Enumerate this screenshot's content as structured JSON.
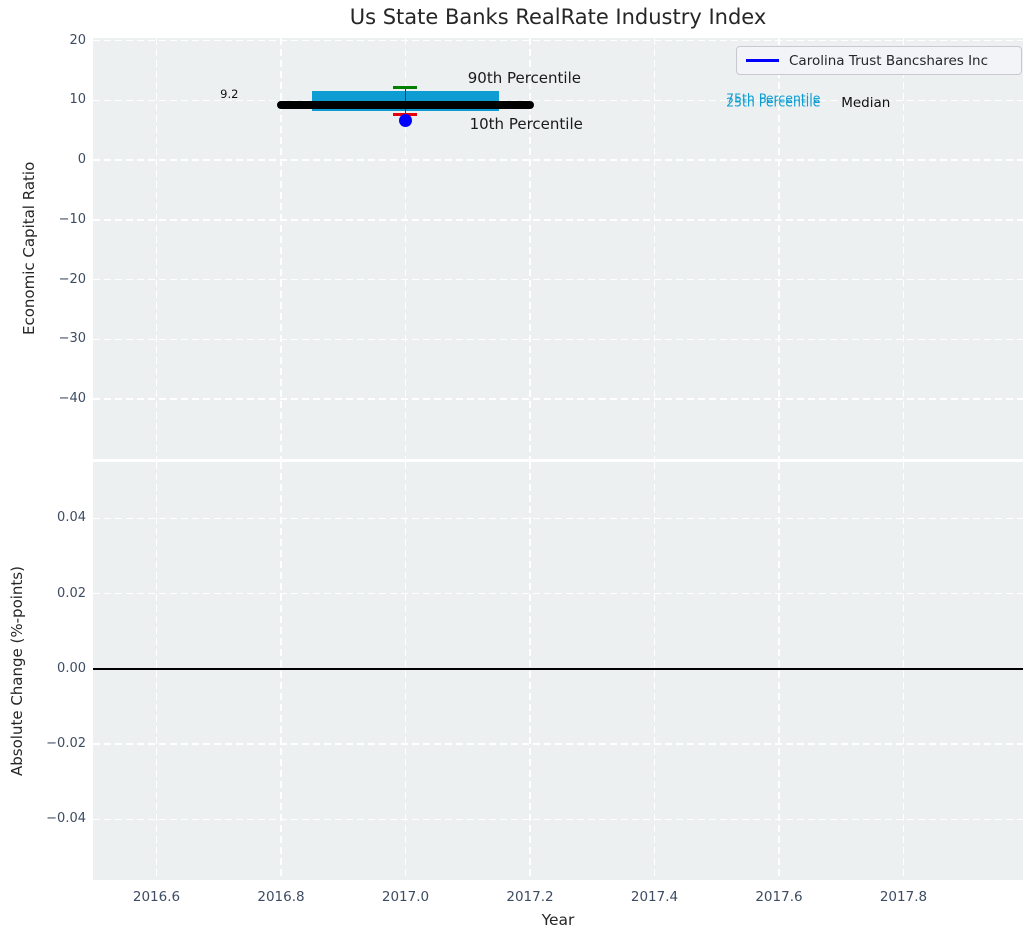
{
  "chart_data": {
    "type": "box",
    "title": "Us State Banks RealRate Industry Index",
    "xlabel": "Year",
    "xlim": [
      2016.498,
      2017.992
    ],
    "xticks": [
      {
        "value": 2016.6,
        "label": "2016.6"
      },
      {
        "value": 2016.8,
        "label": "2016.8"
      },
      {
        "value": 2017.0,
        "label": "2017.0"
      },
      {
        "value": 2017.2,
        "label": "2017.2"
      },
      {
        "value": 2017.4,
        "label": "2017.4"
      },
      {
        "value": 2017.6,
        "label": "2017.6"
      },
      {
        "value": 2017.8,
        "label": "2017.8"
      }
    ],
    "grid": true,
    "legend": {
      "position": "upper right",
      "entries": [
        {
          "label": "Carolina Trust Bancshares Inc",
          "color": "#0000ff"
        }
      ]
    },
    "panels": [
      {
        "ylabel": "Economic Capital Ratio",
        "ylim": [
          -50,
          20.45
        ],
        "yticks": [
          {
            "value": 20,
            "label": "20"
          },
          {
            "value": 10,
            "label": "10"
          },
          {
            "value": 0,
            "label": "0"
          },
          {
            "value": -10,
            "label": "−10"
          },
          {
            "value": -20,
            "label": "−20"
          },
          {
            "value": -30,
            "label": "−30"
          },
          {
            "value": -40,
            "label": "−40"
          }
        ],
        "industry": {
          "year": 2017.0,
          "median": 9.2,
          "p10": 7.6,
          "p25": 8.2,
          "p75": 11.5,
          "p90": 12.2,
          "box_year_span": [
            2016.85,
            2017.15
          ],
          "median_year_span": [
            2016.8,
            2017.2
          ]
        },
        "company_point": {
          "name": "Carolina Trust Bancshares Inc",
          "year": 2017.0,
          "value": 6.7
        },
        "annotations": [
          {
            "text": "9.2",
            "year": 2016.717,
            "value": 11.0,
            "color": "#111111",
            "size": 11.5,
            "align": "center"
          },
          {
            "text": "90th Percentile",
            "year": 2017.1,
            "value": 13.8,
            "color": "#1a1a1a",
            "size": 15,
            "align": "left"
          },
          {
            "text": "10th Percentile",
            "year": 2017.103,
            "value": 6.0,
            "color": "#1a1a1a",
            "size": 15,
            "align": "left"
          },
          {
            "text": "75th Percentile",
            "year": 2017.515,
            "value": 10.35,
            "color": "#0d9dd2",
            "size": 12.5,
            "align": "left"
          },
          {
            "text": "25th Percentile",
            "year": 2017.515,
            "value": 9.8,
            "color": "#0d9dd2",
            "size": 12.5,
            "align": "left"
          },
          {
            "text": "Median",
            "year": 2017.7,
            "value": 9.55,
            "color": "#111111",
            "size": 13.5,
            "align": "left"
          }
        ]
      },
      {
        "ylabel": "Absolute Change (%-points)",
        "ylim": [
          -0.0561,
          0.055
        ],
        "yticks": [
          {
            "value": 0.04,
            "label": "0.04"
          },
          {
            "value": 0.02,
            "label": "0.02"
          },
          {
            "value": 0.0,
            "label": "0.00"
          },
          {
            "value": -0.02,
            "label": "−0.02"
          },
          {
            "value": -0.04,
            "label": "−0.04"
          }
        ],
        "zero_line": 0.0
      }
    ],
    "colors": {
      "plot_background": "#ecf0f1",
      "grid": "#ffffff",
      "iqr_box": "#0d9dd2",
      "median_line": "#000000",
      "p90_cap": "#008000",
      "p10_cap": "#e8000b",
      "whisker_line": "#3a3a3a",
      "company_point": "#0000ff",
      "zero_line": "#000000",
      "tick_label": "#3e4c63"
    }
  }
}
